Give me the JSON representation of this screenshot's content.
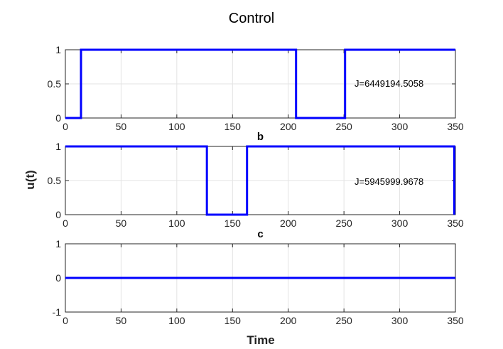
{
  "figure_title": "Control",
  "ylabel": "u(t)",
  "xlabel": "Time",
  "colors": {
    "series": "#0000ff",
    "axes": "#262626",
    "grid": "#e3e3e3"
  },
  "chart_data": [
    {
      "type": "line",
      "panel_label": "",
      "grid": true,
      "xlim": [
        0,
        350
      ],
      "ylim": [
        0,
        1
      ],
      "xticks": [
        0,
        50,
        100,
        150,
        200,
        250,
        300,
        350
      ],
      "yticks": [
        0,
        0.5,
        1
      ],
      "annotation": "J=6449194.5058",
      "series": [
        {
          "x": [
            0,
            14,
            14,
            207,
            207,
            251,
            251,
            350
          ],
          "values": [
            0,
            0,
            1,
            1,
            0,
            0,
            1,
            1
          ]
        }
      ]
    },
    {
      "type": "line",
      "panel_label": "b",
      "grid": true,
      "xlim": [
        0,
        350
      ],
      "ylim": [
        0,
        1
      ],
      "xticks": [
        0,
        50,
        100,
        150,
        200,
        250,
        300,
        350
      ],
      "yticks": [
        0,
        0.5,
        1
      ],
      "annotation": "J=5945999.9678",
      "series": [
        {
          "x": [
            0,
            127,
            127,
            163,
            163,
            349,
            349
          ],
          "values": [
            1,
            1,
            0,
            0,
            1,
            1,
            0
          ]
        }
      ]
    },
    {
      "type": "line",
      "panel_label": "c",
      "grid": true,
      "xlim": [
        0,
        350
      ],
      "ylim": [
        -1,
        1
      ],
      "xticks": [
        0,
        50,
        100,
        150,
        200,
        250,
        300,
        350
      ],
      "yticks": [
        -1,
        0,
        1
      ],
      "annotation": "",
      "series": [
        {
          "x": [
            0,
            350
          ],
          "values": [
            0,
            0
          ]
        }
      ]
    }
  ]
}
